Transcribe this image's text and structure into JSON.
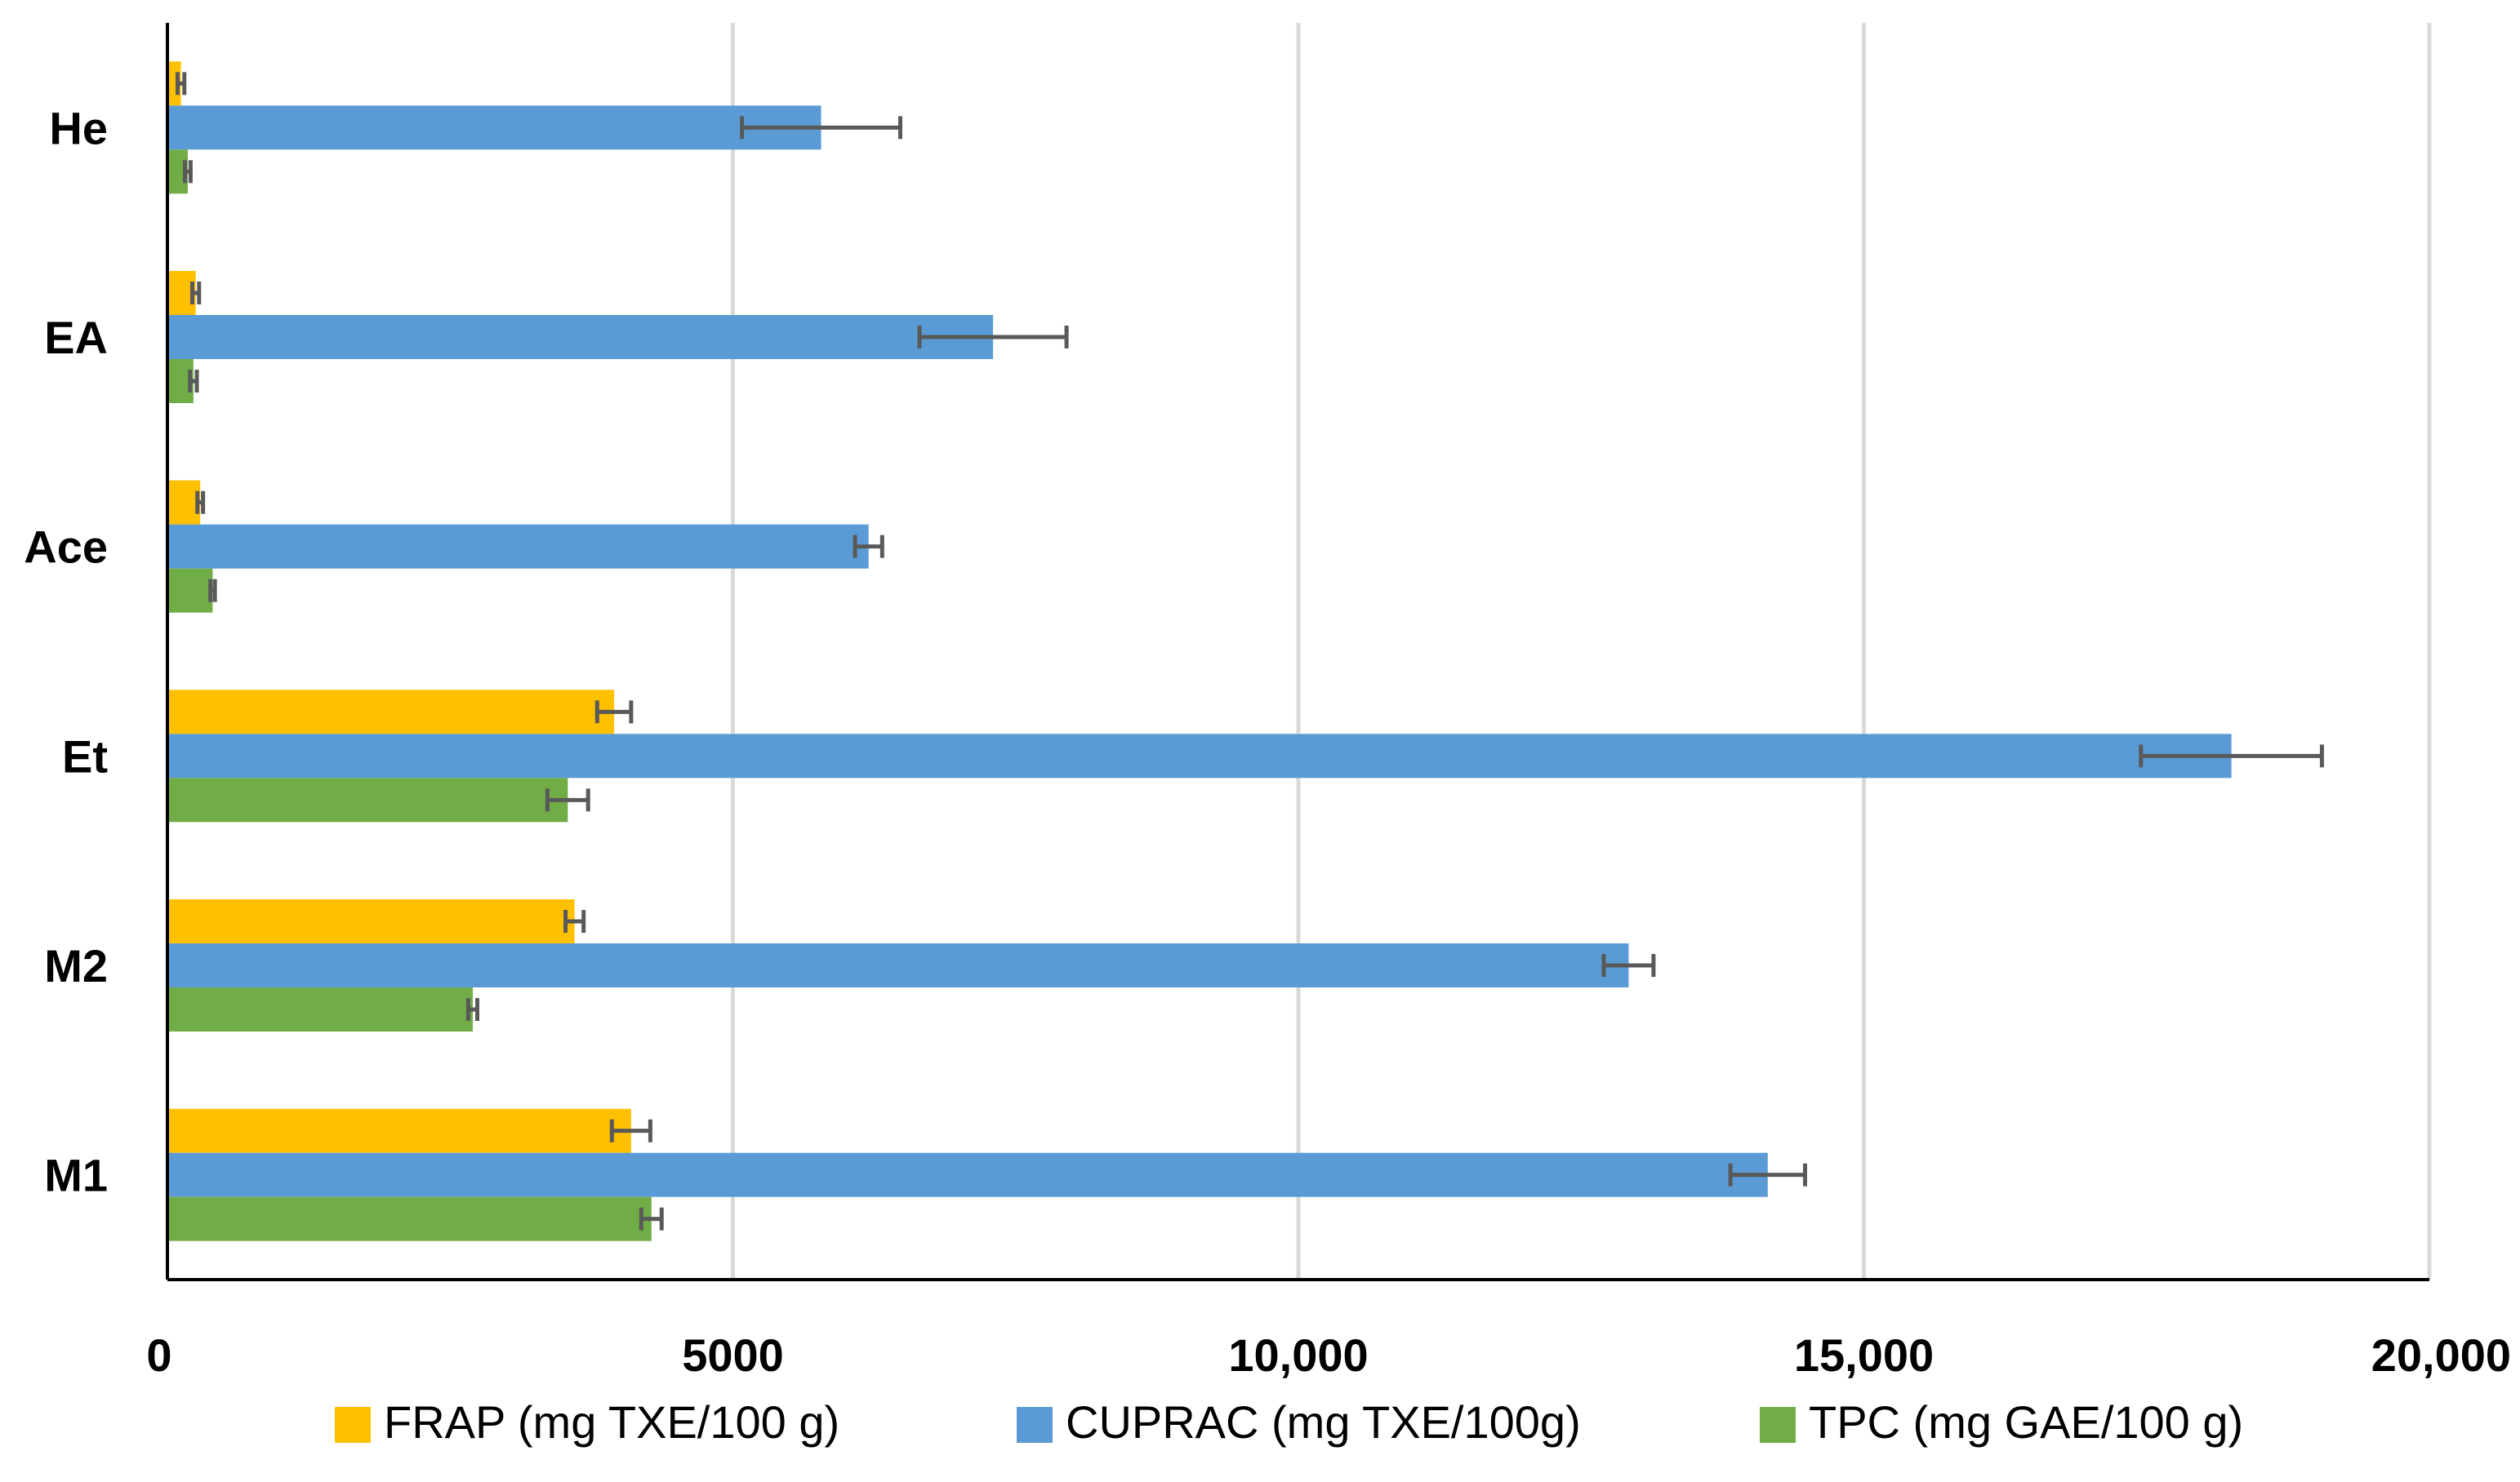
{
  "chart_data": {
    "type": "bar",
    "orientation": "horizontal",
    "categories": [
      "He",
      "EA",
      "Ace",
      "Et",
      "M2",
      "M1"
    ],
    "series": [
      {
        "name": "FRAP (mg TXE/100 g)",
        "color": "#FFC000",
        "values": [
          120,
          250,
          290,
          3950,
          3600,
          4100
        ],
        "errors": [
          30,
          30,
          25,
          150,
          80,
          170
        ]
      },
      {
        "name": "CUPRAC (mg TXE/100g)",
        "color": "#5B9BD5",
        "values": [
          5780,
          7300,
          6200,
          18250,
          12920,
          14150
        ],
        "errors": [
          700,
          650,
          120,
          800,
          220,
          330
        ]
      },
      {
        "name": "TPC (mg GAE/100 g)",
        "color": "#70AD47",
        "values": [
          180,
          230,
          400,
          3540,
          2700,
          4280
        ],
        "errors": [
          25,
          30,
          20,
          180,
          40,
          90
        ]
      }
    ],
    "xlim": [
      0,
      20000
    ],
    "xticks": [
      0,
      5000,
      10000,
      15000,
      20000
    ],
    "xtick_labels": [
      "0",
      "5000",
      "10,000",
      "15,000",
      "20,000"
    ],
    "grid": "vertical",
    "legend": "bottom",
    "error_bar_color": "#595959",
    "grid_color": "#D9D9D9",
    "axis_color": "#000000"
  }
}
